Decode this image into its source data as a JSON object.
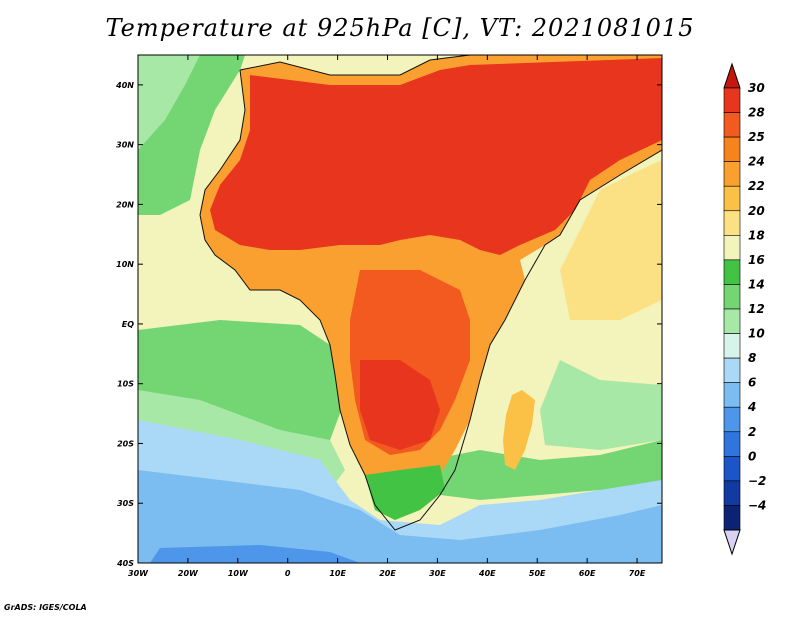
{
  "title": "Temperature at 925hPa [C], VT: 2021081015",
  "credit": "GrADS: IGES/COLA",
  "map": {
    "region": "Africa and surroundings",
    "lon_range": [
      -30,
      75
    ],
    "lat_range": [
      -40,
      45
    ],
    "lat_ticks": [
      {
        "value": 40,
        "label": "40N"
      },
      {
        "value": 30,
        "label": "30N"
      },
      {
        "value": 20,
        "label": "20N"
      },
      {
        "value": 10,
        "label": "10N"
      },
      {
        "value": 0,
        "label": "EQ"
      },
      {
        "value": -10,
        "label": "10S"
      },
      {
        "value": -20,
        "label": "20S"
      },
      {
        "value": -30,
        "label": "30S"
      },
      {
        "value": -40,
        "label": "40S"
      }
    ],
    "lon_ticks": [
      {
        "value": -30,
        "label": "30W"
      },
      {
        "value": -20,
        "label": "20W"
      },
      {
        "value": -10,
        "label": "10W"
      },
      {
        "value": 0,
        "label": "0"
      },
      {
        "value": 10,
        "label": "10E"
      },
      {
        "value": 20,
        "label": "20E"
      },
      {
        "value": 30,
        "label": "30E"
      },
      {
        "value": 40,
        "label": "40E"
      },
      {
        "value": 50,
        "label": "50E"
      },
      {
        "value": 60,
        "label": "60E"
      },
      {
        "value": 70,
        "label": "70E"
      }
    ]
  },
  "colorbar": {
    "levels": [
      {
        "label": "30",
        "color": "#e8351e"
      },
      {
        "label": "28",
        "color": "#f25a1f"
      },
      {
        "label": "25",
        "color": "#f7831c"
      },
      {
        "label": "24",
        "color": "#f9a030"
      },
      {
        "label": "22",
        "color": "#fbc146"
      },
      {
        "label": "20",
        "color": "#fbe184"
      },
      {
        "label": "18",
        "color": "#f3f3bc"
      },
      {
        "label": "16",
        "color": "#43c343"
      },
      {
        "label": "14",
        "color": "#73d673"
      },
      {
        "label": "12",
        "color": "#a7e8a7"
      },
      {
        "label": "10",
        "color": "#d8f4ea"
      },
      {
        "label": "8",
        "color": "#aad9f7"
      },
      {
        "label": "6",
        "color": "#7bbcf1"
      },
      {
        "label": "4",
        "color": "#4d96e9"
      },
      {
        "label": "2",
        "color": "#2f75dd"
      },
      {
        "label": "0",
        "color": "#1c55c8"
      },
      {
        "label": "−2",
        "color": "#123aa3"
      },
      {
        "label": "−4",
        "color": "#0c2275"
      }
    ],
    "top_arrow_color": "#c51610",
    "bottom_arrow_color": "#d9d2f2"
  }
}
